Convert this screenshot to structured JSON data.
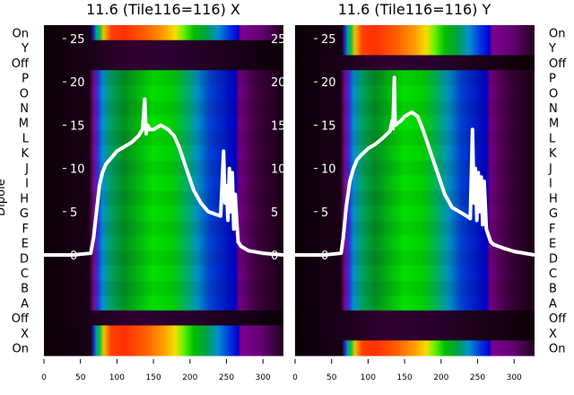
{
  "ylabel": "Dipole",
  "row_labels": [
    "On",
    "Y",
    "Off",
    "P",
    "O",
    "N",
    "M",
    "L",
    "K",
    "J",
    "I",
    "H",
    "G",
    "F",
    "E",
    "D",
    "C",
    "B",
    "A",
    "Off",
    "X",
    "On"
  ],
  "colors": {
    "background_dark": "#0c0008",
    "line": "#ffffff",
    "hot_stops": [
      [
        0,
        "#0c0008"
      ],
      [
        64,
        "#160014"
      ],
      [
        68,
        "#2a20c0"
      ],
      [
        72,
        "#00a0a0"
      ],
      [
        76,
        "#00c040"
      ],
      [
        82,
        "#f0c000"
      ],
      [
        92,
        "#ff4000"
      ],
      [
        110,
        "#ff3000"
      ],
      [
        140,
        "#ff6000"
      ],
      [
        165,
        "#ffa000"
      ],
      [
        180,
        "#f0e000"
      ],
      [
        192,
        "#60f000"
      ],
      [
        205,
        "#00c000"
      ],
      [
        222,
        "#00a040"
      ],
      [
        238,
        "#0090d0"
      ],
      [
        255,
        "#0030e0"
      ],
      [
        266,
        "#0000d0"
      ],
      [
        270,
        "#800090"
      ],
      [
        300,
        "#600070"
      ],
      [
        328,
        "#200018"
      ]
    ],
    "green_stops": [
      [
        0,
        "#0c0008"
      ],
      [
        62,
        "#1a0016"
      ],
      [
        68,
        "#7a0a8a"
      ],
      [
        74,
        "#3030e0"
      ],
      [
        80,
        "#0090d0"
      ],
      [
        92,
        "#00a060"
      ],
      [
        110,
        "#009020"
      ],
      [
        150,
        "#00e000"
      ],
      [
        175,
        "#00d000"
      ],
      [
        195,
        "#00b060"
      ],
      [
        210,
        "#0090c0"
      ],
      [
        228,
        "#0040d0"
      ],
      [
        262,
        "#0000c0"
      ],
      [
        268,
        "#700080"
      ],
      [
        290,
        "#400040"
      ],
      [
        328,
        "#180014"
      ]
    ],
    "dark_stops": [
      [
        0,
        "#0a0006"
      ],
      [
        65,
        "#1a0018"
      ],
      [
        120,
        "#300030"
      ],
      [
        180,
        "#2a0030"
      ],
      [
        260,
        "#1a0018"
      ],
      [
        328,
        "#0a0006"
      ]
    ]
  },
  "chart_data": [
    {
      "type": "heatmap",
      "title": "11.6 (Tile116=116) X",
      "xlabel": "",
      "ylabel": "Dipole",
      "xlim": [
        0,
        328
      ],
      "ylim": [
        -11.5,
        26.7
      ],
      "xticks": [
        "0",
        "50",
        "100",
        "150",
        "200",
        "250",
        "300"
      ],
      "yticks": [
        "0",
        "5",
        "10",
        "15",
        "20",
        "25"
      ],
      "bands": [
        "hot",
        "dark",
        "dark",
        "green",
        "green",
        "green",
        "green",
        "green",
        "green",
        "green",
        "green",
        "green",
        "green",
        "green",
        "green",
        "green",
        "green",
        "green",
        "green",
        "dark",
        "hot",
        "hot"
      ],
      "line": {
        "x": [
          0,
          40,
          64,
          68,
          72,
          76,
          80,
          85,
          90,
          100,
          110,
          120,
          130,
          135,
          136,
          138,
          140,
          142,
          145,
          150,
          160,
          170,
          178,
          185,
          195,
          205,
          215,
          225,
          235,
          242,
          246,
          248,
          250,
          252,
          254,
          256,
          258,
          260,
          262,
          264,
          266,
          270,
          280,
          300,
          328
        ],
        "y": [
          0,
          0,
          0.2,
          2,
          5,
          8,
          9.5,
          10.5,
          11,
          12,
          12.5,
          13,
          13.8,
          14.5,
          15.5,
          18,
          14,
          15,
          14.5,
          14.5,
          15,
          14.5,
          13.8,
          12.5,
          10,
          7.5,
          6,
          5,
          4.7,
          4.5,
          12,
          6,
          8,
          4,
          10,
          5,
          9.5,
          3,
          7,
          4,
          1.5,
          1,
          0.5,
          0.2,
          0
        ]
      }
    },
    {
      "type": "heatmap",
      "title": "11.6 (Tile116=116) Y",
      "xlabel": "",
      "ylabel": "",
      "xlim": [
        0,
        328
      ],
      "ylim": [
        -11.5,
        26.7
      ],
      "xticks": [
        "0",
        "50",
        "100",
        "150",
        "200",
        "250",
        "300"
      ],
      "yticks": [
        "0",
        "5",
        "10",
        "15",
        "20",
        "25"
      ],
      "bands": [
        "hot",
        "hot",
        "dark",
        "green",
        "green",
        "green",
        "green",
        "green",
        "green",
        "green",
        "green",
        "green",
        "green",
        "green",
        "green",
        "green",
        "green",
        "green",
        "green",
        "dark",
        "dark",
        "hot"
      ],
      "line": {
        "x": [
          0,
          40,
          63,
          66,
          70,
          75,
          80,
          85,
          90,
          100,
          110,
          120,
          130,
          133,
          134,
          136,
          137,
          138,
          140,
          145,
          150,
          160,
          168,
          175,
          185,
          195,
          205,
          215,
          225,
          235,
          240,
          243,
          245,
          247,
          249,
          251,
          253,
          255,
          257,
          259,
          262,
          266,
          268,
          272,
          285,
          300,
          328
        ],
        "y": [
          0,
          0,
          0.2,
          2,
          5.5,
          8.5,
          10,
          11,
          11.5,
          12.3,
          12.8,
          13.5,
          14.3,
          15.5,
          14.6,
          20.5,
          15,
          15,
          15.2,
          15.5,
          16,
          16.5,
          16,
          14.5,
          12,
          9.5,
          7,
          5.5,
          5,
          4.5,
          4.2,
          14.5,
          6,
          10,
          4,
          9.5,
          5,
          9,
          3.5,
          8.5,
          3,
          2,
          1.5,
          1.2,
          0.8,
          0.4,
          0
        ]
      }
    }
  ]
}
